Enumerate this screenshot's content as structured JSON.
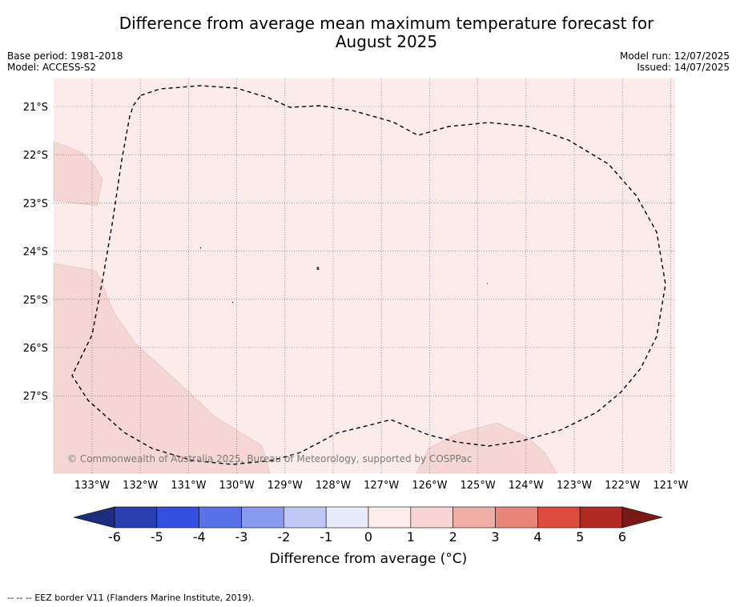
{
  "title_line1": "Difference from average mean maximum temperature forecast for",
  "title_line2": "August 2025",
  "base_period": "Base period: 1981-2018",
  "model": "Model: ACCESS-S2",
  "model_run": "Model run: 12/07/2025",
  "issued": "Issued: 14/07/2025",
  "copyright": "© Commonwealth of Australia 2025, Bureau of Meteorology, supported by COSPPac",
  "lat_labels": [
    "21°S",
    "22°S",
    "23°S",
    "24°S",
    "25°S",
    "26°S",
    "27°S"
  ],
  "lon_labels": [
    "133°W",
    "132°W",
    "131°W",
    "130°W",
    "129°W",
    "128°W",
    "127°W",
    "126°W",
    "125°W",
    "124°W",
    "123°W",
    "122°W",
    "121°W"
  ],
  "colorbar": {
    "title": "Difference from average (°C)",
    "ticks": [
      "-6",
      "-5",
      "-4",
      "-3",
      "-2",
      "-1",
      "0",
      "1",
      "2",
      "3",
      "4",
      "5",
      "6"
    ],
    "colors": [
      "#2a3fb0",
      "#3350e0",
      "#5a72e8",
      "#8899ee",
      "#c2c8f4",
      "#e8ebfa",
      "#fcecea",
      "#f6d5d4",
      "#efaea6",
      "#e9867c",
      "#dc4b3e",
      "#b02a23"
    ],
    "under_color": "#1d2d80",
    "over_color": "#7a1a16"
  },
  "map_colors": {
    "background": "#fbeceb",
    "region_1_2": "#f5d6d5"
  },
  "footer": "--  --  -- EEZ border V11 (Flanders Marine Institute, 2019)."
}
